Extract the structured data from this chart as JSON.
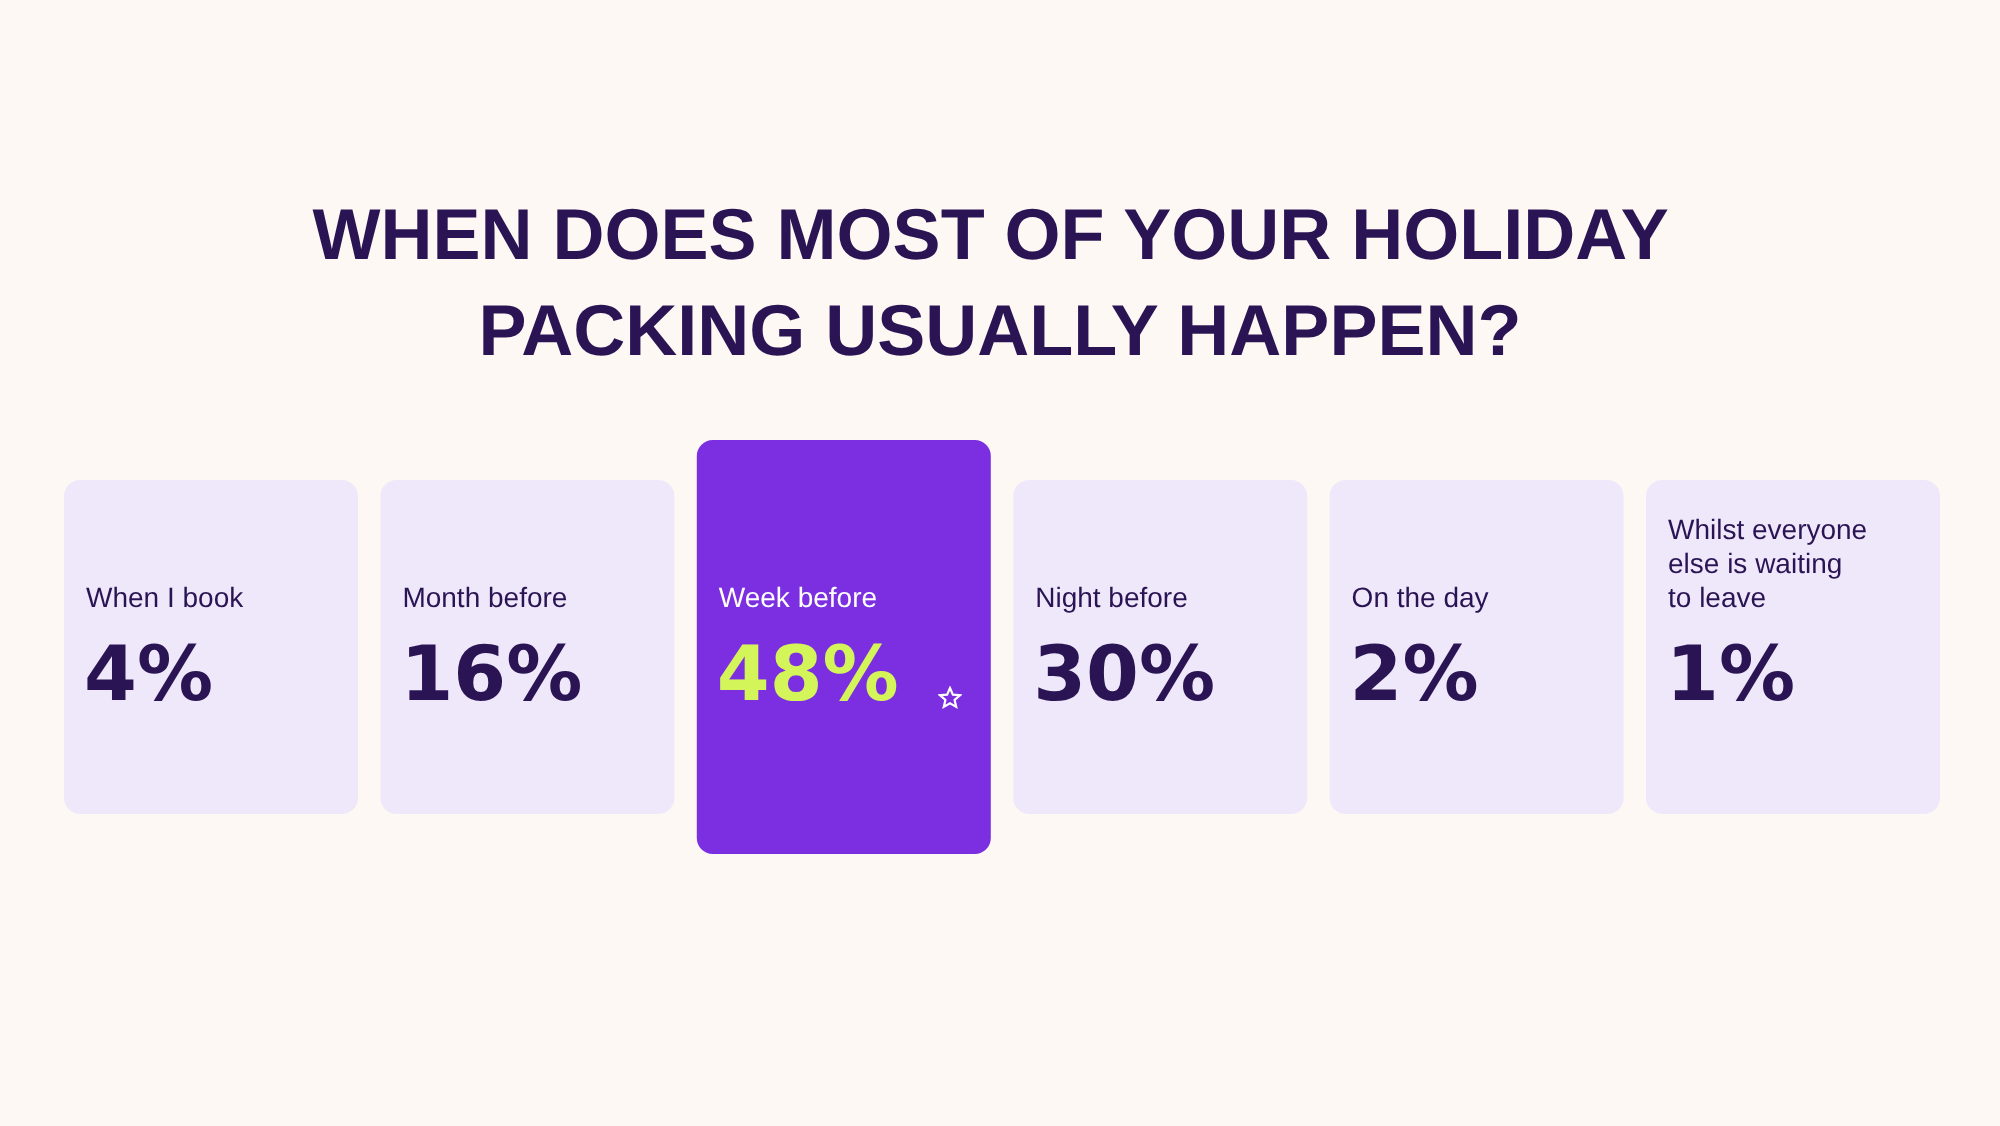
{
  "chart_data": {
    "type": "other",
    "title": "WHEN DOES MOST OF YOUR HOLIDAY PACKING USUALLY HAPPEN?",
    "categories": [
      "When I book",
      "Month before",
      "Week before",
      "Night before",
      "On the day",
      "Whilst everyone else is waiting to leave"
    ],
    "values": [
      4,
      16,
      48,
      30,
      2,
      1
    ],
    "value_labels": [
      "4%",
      "16%",
      "48%",
      "30%",
      "2%",
      "1%"
    ],
    "colors": [
      "#efe8fb",
      "#efe8fb",
      "#7b2fe0",
      "#efe8fb",
      "#efe8fb",
      "#efe8fb"
    ]
  }
}
